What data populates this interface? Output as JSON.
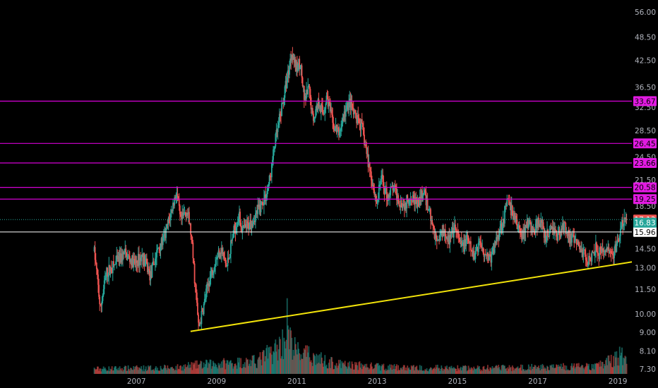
{
  "colors": {
    "background": "#000000",
    "up": "#26a69a",
    "down": "#ef5350",
    "level_line": "#d500d5",
    "trendline": "#f2e30a",
    "white_line": "#e6e6e6",
    "tick_text": "#b2b5be"
  },
  "chart_data": {
    "type": "candlestick",
    "title": "",
    "xlabel": "",
    "ylabel": "",
    "y_scale": "log",
    "ylim": [
      7.1,
      59.0
    ],
    "xlim": [
      2004.1,
      2019.85
    ],
    "grid": false,
    "legend": "none",
    "x_ticks": [
      "2007",
      "2009",
      "2011",
      "2013",
      "2015",
      "2017",
      "2019"
    ],
    "y_ticks": [
      "56.00",
      "48.50",
      "42.50",
      "36.50",
      "32.50",
      "28.50",
      "24.50",
      "21.50",
      "18.50",
      "14.50",
      "13.00",
      "11.50",
      "10.00",
      "9.00",
      "8.10",
      "7.30"
    ],
    "price_path": [
      [
        2006.45,
        14.3
      ],
      [
        2006.6,
        10.2
      ],
      [
        2006.75,
        12.6
      ],
      [
        2006.95,
        13.2
      ],
      [
        2007.2,
        14.1
      ],
      [
        2007.45,
        13.3
      ],
      [
        2007.65,
        13.9
      ],
      [
        2007.85,
        12.4
      ],
      [
        2008.05,
        14.6
      ],
      [
        2008.2,
        15.4
      ],
      [
        2008.35,
        17.6
      ],
      [
        2008.5,
        20.1
      ],
      [
        2008.6,
        16.8
      ],
      [
        2008.75,
        18.2
      ],
      [
        2008.85,
        16.1
      ],
      [
        2008.95,
        12.3
      ],
      [
        2009.05,
        9.2
      ],
      [
        2009.15,
        10.1
      ],
      [
        2009.3,
        12.0
      ],
      [
        2009.45,
        13.4
      ],
      [
        2009.6,
        14.6
      ],
      [
        2009.75,
        13.0
      ],
      [
        2009.9,
        15.5
      ],
      [
        2010.05,
        17.6
      ],
      [
        2010.15,
        16.0
      ],
      [
        2010.3,
        16.6
      ],
      [
        2010.45,
        17.4
      ],
      [
        2010.6,
        18.6
      ],
      [
        2010.75,
        19.9
      ],
      [
        2010.85,
        22.2
      ],
      [
        2010.95,
        26.5
      ],
      [
        2011.05,
        29.5
      ],
      [
        2011.15,
        33.5
      ],
      [
        2011.28,
        39.5
      ],
      [
        2011.38,
        45.0
      ],
      [
        2011.48,
        40.2
      ],
      [
        2011.58,
        42.4
      ],
      [
        2011.68,
        33.6
      ],
      [
        2011.8,
        36.0
      ],
      [
        2011.9,
        30.3
      ],
      [
        2012.05,
        33.8
      ],
      [
        2012.15,
        31.2
      ],
      [
        2012.25,
        34.8
      ],
      [
        2012.4,
        29.2
      ],
      [
        2012.55,
        28.0
      ],
      [
        2012.7,
        31.5
      ],
      [
        2012.8,
        33.5
      ],
      [
        2012.95,
        30.6
      ],
      [
        2013.1,
        29.5
      ],
      [
        2013.25,
        24.6
      ],
      [
        2013.4,
        20.7
      ],
      [
        2013.5,
        18.8
      ],
      [
        2013.6,
        21.8
      ],
      [
        2013.75,
        19.5
      ],
      [
        2013.9,
        20.6
      ],
      [
        2014.05,
        19.1
      ],
      [
        2014.2,
        18.6
      ],
      [
        2014.35,
        19.9
      ],
      [
        2014.5,
        18.5
      ],
      [
        2014.65,
        20.0
      ],
      [
        2014.8,
        18.1
      ],
      [
        2014.9,
        16.1
      ],
      [
        2015.0,
        15.1
      ],
      [
        2015.15,
        16.3
      ],
      [
        2015.3,
        15.2
      ],
      [
        2015.45,
        16.2
      ],
      [
        2015.6,
        14.6
      ],
      [
        2015.75,
        15.3
      ],
      [
        2015.9,
        13.8
      ],
      [
        2016.05,
        15.1
      ],
      [
        2016.2,
        14.1
      ],
      [
        2016.35,
        13.7
      ],
      [
        2016.5,
        15.7
      ],
      [
        2016.65,
        17.2
      ],
      [
        2016.75,
        19.1
      ],
      [
        2016.85,
        17.9
      ],
      [
        2016.95,
        17.0
      ],
      [
        2017.1,
        15.6
      ],
      [
        2017.25,
        16.9
      ],
      [
        2017.4,
        16.0
      ],
      [
        2017.55,
        17.1
      ],
      [
        2017.7,
        15.3
      ],
      [
        2017.85,
        16.4
      ],
      [
        2018.0,
        15.6
      ],
      [
        2018.15,
        16.6
      ],
      [
        2018.3,
        15.5
      ],
      [
        2018.45,
        15.0
      ],
      [
        2018.6,
        14.4
      ],
      [
        2018.75,
        13.6
      ],
      [
        2018.85,
        14.1
      ],
      [
        2018.95,
        14.8
      ],
      [
        2019.05,
        14.1
      ],
      [
        2019.2,
        14.6
      ],
      [
        2019.35,
        13.8
      ],
      [
        2019.5,
        15.0
      ],
      [
        2019.6,
        16.5
      ],
      [
        2019.72,
        17.13
      ]
    ],
    "volume_path": [
      [
        2006.5,
        0.08
      ],
      [
        2008.5,
        0.1
      ],
      [
        2009.0,
        0.14
      ],
      [
        2010.5,
        0.2
      ],
      [
        2011.0,
        0.4
      ],
      [
        2011.2,
        0.55
      ],
      [
        2011.25,
        0.9
      ],
      [
        2011.3,
        0.55
      ],
      [
        2011.5,
        0.35
      ],
      [
        2012.5,
        0.15
      ],
      [
        2014.0,
        0.1
      ],
      [
        2016.0,
        0.09
      ],
      [
        2017.0,
        0.1
      ],
      [
        2019.0,
        0.12
      ],
      [
        2019.6,
        0.3
      ],
      [
        2019.75,
        0.2
      ]
    ],
    "horizontal_levels": [
      {
        "value": 33.67,
        "label": "33.67",
        "color": "#d500d5",
        "label_bg": "#e21ae2",
        "label_fg": "#000000"
      },
      {
        "value": 26.45,
        "label": "26.45",
        "color": "#d500d5",
        "label_bg": "#e21ae2",
        "label_fg": "#000000"
      },
      {
        "value": 23.66,
        "label": "23.66",
        "color": "#d500d5",
        "label_bg": "#e21ae2",
        "label_fg": "#000000"
      },
      {
        "value": 20.58,
        "label": "20.58",
        "color": "#d500d5",
        "label_bg": "#e21ae2",
        "label_fg": "#000000"
      },
      {
        "value": 19.25,
        "label": "19.25",
        "color": "#d500d5",
        "label_bg": "#e21ae2",
        "label_fg": "#000000"
      },
      {
        "value": 15.96,
        "label": "15.96",
        "color": "#e6e6e6",
        "label_bg": "#ffffff",
        "label_fg": "#000000"
      }
    ],
    "price_tags": [
      {
        "value": 17.13,
        "label": "17.13",
        "bg": "#ef5350",
        "fg": "#ffffff"
      },
      {
        "value": 16.83,
        "label": "16.83",
        "bg": "#26a69a",
        "fg": "#ffffff"
      }
    ],
    "dotted_line": {
      "value": 17.13,
      "color": "#26a69a"
    },
    "trendline": {
      "x1": 2008.85,
      "y1": 9.05,
      "x2": 2019.85,
      "y2": 13.45,
      "color": "#f2e30a"
    }
  }
}
